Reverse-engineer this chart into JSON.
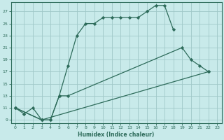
{
  "xlabel": "Humidex (Indice chaleur)",
  "bg_color": "#c8eaea",
  "grid_color": "#a0c8c8",
  "line_color": "#2d6b5a",
  "xlim": [
    -0.5,
    23.5
  ],
  "ylim": [
    8.5,
    28.5
  ],
  "xticks": [
    0,
    1,
    2,
    3,
    4,
    5,
    6,
    7,
    8,
    9,
    10,
    11,
    12,
    13,
    14,
    15,
    16,
    17,
    18,
    19,
    20,
    21,
    22,
    23
  ],
  "yticks": [
    9,
    11,
    13,
    15,
    17,
    19,
    21,
    23,
    25,
    27
  ],
  "line1_x": [
    0,
    1,
    2,
    3,
    4,
    5,
    6,
    7,
    8,
    9,
    10,
    11,
    12,
    13,
    14,
    15,
    16,
    17,
    18
  ],
  "line1_y": [
    11,
    10,
    11,
    9,
    9,
    13,
    18,
    23,
    25,
    25,
    26,
    26,
    26,
    26,
    26,
    27,
    28,
    28,
    24
  ],
  "line2_x": [
    0,
    3,
    4,
    5,
    6,
    19,
    20,
    21,
    22
  ],
  "line2_y": [
    11,
    9,
    9,
    13,
    13,
    21,
    19,
    18,
    17
  ],
  "line3_x": [
    0,
    3,
    22
  ],
  "line3_y": [
    11,
    9,
    17
  ]
}
